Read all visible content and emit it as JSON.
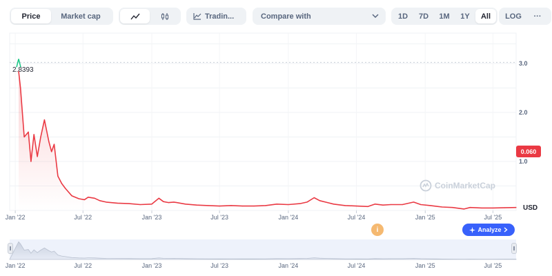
{
  "toolbar": {
    "price_label": "Price",
    "market_cap_label": "Market cap",
    "line_icon": "line-chart-icon",
    "candle_icon": "candlestick-icon",
    "trading_label": "Tradin...",
    "trading_icon": "tradingview-icon",
    "compare_label": "Compare with",
    "compare_icon": "chevron-down-icon",
    "ranges": [
      "1D",
      "7D",
      "1M",
      "1Y",
      "All"
    ],
    "active_range": "All",
    "log_label": "LOG",
    "more_label": "···"
  },
  "chart_data": {
    "type": "area",
    "x": [
      "2022-01-10",
      "2022-01-15",
      "2022-01-25",
      "2022-02-05",
      "2022-02-12",
      "2022-02-20",
      "2022-03-01",
      "2022-03-10",
      "2022-03-20",
      "2022-04-01",
      "2022-04-08",
      "2022-04-15",
      "2022-04-25",
      "2022-05-05",
      "2022-05-15",
      "2022-06-01",
      "2022-06-20",
      "2022-07-05",
      "2022-07-15",
      "2022-08-01",
      "2022-08-15",
      "2022-09-01",
      "2022-10-01",
      "2022-11-01",
      "2022-12-01",
      "2023-01-01",
      "2023-01-20",
      "2023-02-01",
      "2023-02-15",
      "2023-03-01",
      "2023-04-01",
      "2023-05-01",
      "2023-06-01",
      "2023-07-01",
      "2023-08-01",
      "2023-09-01",
      "2023-10-01",
      "2023-11-01",
      "2023-12-01",
      "2024-01-01",
      "2024-02-01",
      "2024-02-20",
      "2024-03-10",
      "2024-03-25",
      "2024-04-15",
      "2024-05-01",
      "2024-06-01",
      "2024-07-01",
      "2024-08-01",
      "2024-08-20",
      "2024-09-10",
      "2024-10-01",
      "2024-11-01",
      "2024-12-01",
      "2024-12-20",
      "2025-01-15",
      "2025-02-15",
      "2025-03-15",
      "2025-04-15",
      "2025-05-01",
      "2025-06-01",
      "2025-07-01",
      "2025-08-01",
      "2025-09-01"
    ],
    "y": [
      2.8393,
      2.5,
      1.5,
      1.6,
      1.0,
      1.55,
      1.1,
      1.5,
      1.85,
      1.4,
      1.2,
      1.35,
      0.7,
      0.55,
      0.45,
      0.3,
      0.24,
      0.22,
      0.27,
      0.25,
      0.2,
      0.17,
      0.15,
      0.14,
      0.12,
      0.13,
      0.25,
      0.18,
      0.16,
      0.17,
      0.13,
      0.11,
      0.1,
      0.09,
      0.1,
      0.09,
      0.09,
      0.1,
      0.13,
      0.12,
      0.14,
      0.17,
      0.26,
      0.2,
      0.16,
      0.13,
      0.1,
      0.09,
      0.08,
      0.13,
      0.11,
      0.12,
      0.12,
      0.17,
      0.12,
      0.1,
      0.07,
      0.06,
      0.03,
      0.06,
      0.05,
      0.05,
      0.055,
      0.06
    ],
    "ylim": [
      0,
      3.0
    ],
    "y_ticks": [
      1.0,
      2.0,
      3.0
    ],
    "y_tick_labels": [
      "1.0",
      "2.0",
      "3.0"
    ],
    "x_tick_labels": [
      "Jan '22",
      "Jul '22",
      "Jan '23",
      "Jul '23",
      "Jan '24",
      "Jul '24",
      "Jan '25",
      "Jul '25"
    ],
    "x_tick_dates": [
      "2022-01-01",
      "2022-07-01",
      "2023-01-01",
      "2023-07-01",
      "2024-01-01",
      "2024-07-01",
      "2025-01-01",
      "2025-07-01"
    ],
    "start_value_label": "2.8393",
    "current_value_label": "0.060",
    "unit_label": "USD",
    "line_color": "#ea3943",
    "fill_color": "#ea3943",
    "grid": true
  },
  "overlay": {
    "watermark_text": "CoinMarketCap",
    "watermark_icon": "coinmarketcap-logo-icon",
    "analyze_label": "Analyze",
    "analyze_icon": "sparkle-icon",
    "analyze_chevron": "chevron-right-icon",
    "info_marker_label": "i"
  },
  "navigator": {
    "x_tick_labels": [
      "Jan '22",
      "Jul '22",
      "Jan '23",
      "Jul '23",
      "Jan '24",
      "Jul '24",
      "Jan '25",
      "Jul '25"
    ],
    "left_handle_icon": "drag-handle-icon",
    "right_handle_icon": "drag-handle-icon"
  }
}
